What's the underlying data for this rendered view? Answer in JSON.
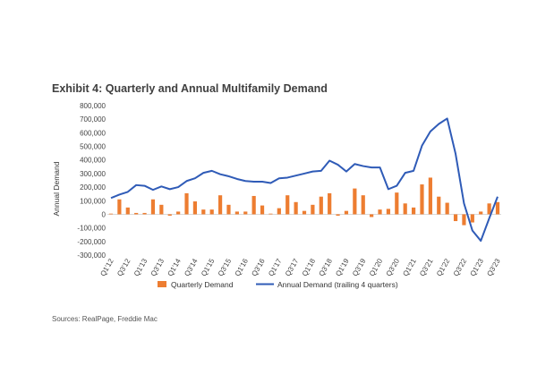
{
  "chart_data": {
    "type": "bar+line",
    "title": "Exhibit 4: Quarterly and Annual Multifamily Demand",
    "ylabel": "Annual Demand",
    "xlabel": "",
    "ylim": [
      -300000,
      800000
    ],
    "yticks": [
      800000,
      700000,
      600000,
      500000,
      400000,
      300000,
      200000,
      100000,
      0,
      -100000,
      -200000,
      -300000
    ],
    "ytick_labels": [
      "800,000",
      "700,000",
      "600,000",
      "500,000",
      "400,000",
      "300,000",
      "200,000",
      "100,000",
      "0",
      "-100,000",
      "-200,000",
      "-300,000"
    ],
    "x_labels_shown": [
      "Q1'12",
      "Q3'12",
      "Q1'13",
      "Q3'13",
      "Q1'14",
      "Q3'14",
      "Q1'15",
      "Q3'15",
      "Q1'16",
      "Q3'16",
      "Q1'17",
      "Q3'17",
      "Q1'18",
      "Q3'18",
      "Q1'19",
      "Q3'19",
      "Q1'20",
      "Q3'20",
      "Q1'21",
      "Q3'21",
      "Q1'22",
      "Q3'22",
      "Q1'23",
      "Q3'23"
    ],
    "quarters": [
      "Q1'12",
      "Q2'12",
      "Q3'12",
      "Q4'12",
      "Q1'13",
      "Q2'13",
      "Q3'13",
      "Q4'13",
      "Q1'14",
      "Q2'14",
      "Q3'14",
      "Q4'14",
      "Q1'15",
      "Q2'15",
      "Q3'15",
      "Q4'15",
      "Q1'16",
      "Q2'16",
      "Q3'16",
      "Q4'16",
      "Q1'17",
      "Q2'17",
      "Q3'17",
      "Q4'17",
      "Q1'18",
      "Q2'18",
      "Q3'18",
      "Q4'18",
      "Q1'19",
      "Q2'19",
      "Q3'19",
      "Q4'19",
      "Q1'20",
      "Q2'20",
      "Q3'20",
      "Q4'20",
      "Q1'21",
      "Q2'21",
      "Q3'21",
      "Q4'21",
      "Q1'22",
      "Q2'22",
      "Q3'22",
      "Q4'22",
      "Q1'23",
      "Q2'23",
      "Q3'23"
    ],
    "series": [
      {
        "name": "Quarterly Demand",
        "type": "bar",
        "color": "#ED7D31",
        "values": [
          5000,
          110000,
          50000,
          10000,
          10000,
          110000,
          70000,
          -10000,
          20000,
          155000,
          95000,
          35000,
          35000,
          140000,
          70000,
          20000,
          20000,
          135000,
          65000,
          5000,
          45000,
          140000,
          90000,
          25000,
          70000,
          130000,
          155000,
          -10000,
          25000,
          190000,
          140000,
          -20000,
          35000,
          40000,
          160000,
          80000,
          50000,
          220000,
          270000,
          130000,
          85000,
          -50000,
          -80000,
          -60000,
          20000,
          80000,
          90000
        ]
      },
      {
        "name": "Annual Demand (trailing 4 quarters)",
        "type": "line",
        "color": "#2F5BB7",
        "values": [
          120000,
          145000,
          165000,
          215000,
          210000,
          180000,
          205000,
          185000,
          200000,
          245000,
          265000,
          305000,
          320000,
          295000,
          280000,
          260000,
          245000,
          240000,
          240000,
          230000,
          265000,
          270000,
          285000,
          300000,
          315000,
          320000,
          395000,
          365000,
          315000,
          370000,
          355000,
          345000,
          345000,
          185000,
          210000,
          305000,
          320000,
          505000,
          610000,
          665000,
          705000,
          445000,
          80000,
          -120000,
          -195000,
          -30000,
          130000
        ]
      }
    ],
    "legend": [
      "Quarterly Demand",
      "Annual Demand (trailing 4 quarters)"
    ],
    "legend_position": "bottom",
    "grid": false
  },
  "source_text": "Sources: RealPage, Freddie Mac"
}
